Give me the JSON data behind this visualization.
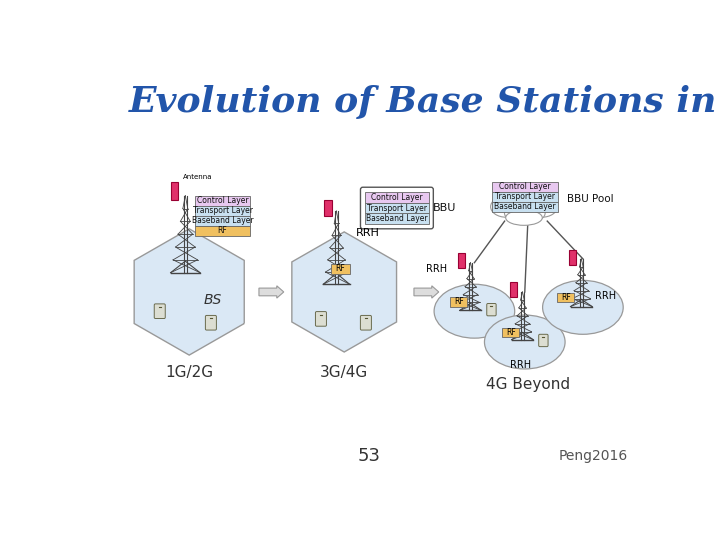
{
  "title": "Evolution of Base Stations in RAN",
  "title_color": "#2255AA",
  "title_fontsize": 26,
  "title_fontstyle": "italic",
  "title_fontweight": "bold",
  "slide_number": "53",
  "source": "Peng2016",
  "bg_color": "#FFFFFF",
  "label_1g2g": "1G/2G",
  "label_3g4g": "3G/4G",
  "label_4gbeyond": "4G Beyond",
  "hex_color": "#DAE8F5",
  "hex_edge": "#999999",
  "circle_color": "#DAE8F5",
  "circle_edge": "#999999",
  "cloud_color": "#FFFFFF",
  "cloud_edge": "#999999",
  "box_control_color": "#E8C8F0",
  "box_transport_color": "#C8E0F0",
  "box_baseband_color": "#C8E0F0",
  "box_rf_color": "#F0C060",
  "box_border": "#666666",
  "antenna_color": "#E0306A",
  "tower_color": "#444444",
  "arrow_fc": "#DDDDDD",
  "arrow_ec": "#999999",
  "label_color": "#333333",
  "footer_color": "#555555"
}
